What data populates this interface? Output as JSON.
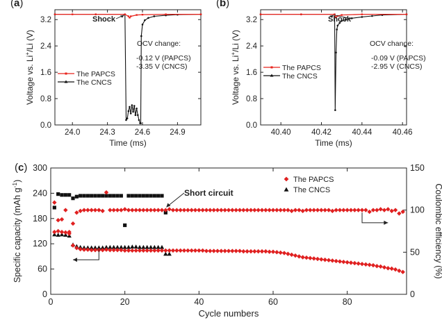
{
  "chart_data": [
    {
      "panel": "a",
      "type": "line",
      "panel_label": "(a)",
      "xlabel": "Time (ms)",
      "ylabel": "Voltage vs. Li+/Li (V)",
      "xlim": [
        23.85,
        25.1
      ],
      "ylim": [
        0.0,
        3.5
      ],
      "xticks": [
        "24.0",
        "24.3",
        "24.6",
        "24.9"
      ],
      "yticks": [
        "0.0",
        "0.8",
        "1.6",
        "2.4",
        "3.2"
      ],
      "legend_position": "bottom-left",
      "annotations": {
        "shock": "Shock",
        "ocv_title": "OCV change:",
        "ocv_lines": [
          "-0.12 V (PAPCS)",
          "-3.35 V (CNCS)"
        ]
      },
      "series": [
        {
          "name": "The PAPCS",
          "color": "#e8231c",
          "x": [
            23.85,
            24.0,
            24.2,
            24.45,
            24.48,
            24.49,
            24.5,
            24.55,
            24.6,
            24.8,
            25.1
          ],
          "y": [
            3.36,
            3.36,
            3.36,
            3.36,
            3.3,
            3.26,
            3.3,
            3.34,
            3.35,
            3.36,
            3.36
          ]
        },
        {
          "name": "The CNCS",
          "color": "#111111",
          "x": [
            23.85,
            24.2,
            24.45,
            24.46,
            24.47,
            24.48,
            24.49,
            24.5,
            24.51,
            24.52,
            24.53,
            24.54,
            24.55,
            24.56,
            24.57,
            24.58,
            24.585,
            24.59,
            24.6,
            24.62,
            24.65,
            24.7,
            24.8,
            24.9,
            25.1
          ],
          "y": [
            3.36,
            3.36,
            3.36,
            0.15,
            0.2,
            0.42,
            0.55,
            0.35,
            0.6,
            0.4,
            0.58,
            0.3,
            0.5,
            0.3,
            0.15,
            0.05,
            0.05,
            2.7,
            3.05,
            3.18,
            3.25,
            3.3,
            3.33,
            3.35,
            3.36
          ]
        }
      ]
    },
    {
      "panel": "b",
      "type": "line",
      "panel_label": "(b)",
      "xlabel": "Time (ms)",
      "ylabel": "Voltage vs. Li+/Li (V)",
      "xlim": [
        40.39,
        40.462
      ],
      "ylim": [
        0.0,
        3.5
      ],
      "xticks": [
        "40.40",
        "40.42",
        "40.44",
        "40.46"
      ],
      "yticks": [
        "0.0",
        "0.8",
        "1.6",
        "2.4",
        "3.2"
      ],
      "legend_position": "bottom-left",
      "annotations": {
        "shock": "Shock",
        "ocv_title": "OCV change:",
        "ocv_lines": [
          "-0.09 V (PAPCS)",
          "-2.95 V (CNCS)"
        ]
      },
      "series": [
        {
          "name": "The PAPCS",
          "color": "#e8231c",
          "x": [
            40.39,
            40.41,
            40.4265,
            40.4268,
            40.4272,
            40.428,
            40.43,
            40.44,
            40.462
          ],
          "y": [
            3.36,
            3.36,
            3.36,
            3.28,
            3.27,
            3.31,
            3.34,
            3.36,
            3.36
          ]
        },
        {
          "name": "The CNCS",
          "color": "#111111",
          "x": [
            40.39,
            40.41,
            40.4265,
            40.4268,
            40.4272,
            40.4276,
            40.428,
            40.429,
            40.43,
            40.432,
            40.435,
            40.44,
            40.445,
            40.45,
            40.462
          ],
          "y": [
            3.36,
            3.36,
            3.36,
            0.45,
            2.2,
            2.9,
            3.02,
            3.1,
            3.16,
            3.2,
            3.24,
            3.28,
            3.31,
            3.34,
            3.36
          ]
        }
      ]
    },
    {
      "panel": "c",
      "type": "scatter",
      "panel_label": "(c)",
      "xlabel": "Cycle numbers",
      "ylabel": "Specific capacity (mAh g-1)",
      "y2label": "Coulombic efficiency (%)",
      "xlim": [
        0,
        96
      ],
      "ylim": [
        0,
        300
      ],
      "y2lim": [
        0,
        150
      ],
      "xticks": [
        "0",
        "20",
        "40",
        "60",
        "80"
      ],
      "yticks": [
        "0",
        "60",
        "120",
        "180",
        "240",
        "300"
      ],
      "y2ticks": [
        "0",
        "50",
        "100",
        "150"
      ],
      "legend_position": "top-right",
      "annotations": {
        "short_circuit": "Short circuit"
      },
      "series": [
        {
          "name": "The PAPCS",
          "marker": "diamond",
          "color": "#e02020",
          "capacity": {
            "x": [
              1,
              2,
              3,
              4,
              5,
              6,
              7,
              8,
              9,
              10,
              11,
              12,
              13,
              14,
              15,
              16,
              17,
              18,
              19,
              20,
              21,
              22,
              23,
              24,
              25,
              26,
              27,
              28,
              29,
              30,
              31,
              32,
              33,
              34,
              35,
              36,
              37,
              38,
              39,
              40,
              41,
              42,
              43,
              44,
              45,
              46,
              47,
              48,
              49,
              50,
              51,
              52,
              53,
              54,
              55,
              56,
              57,
              58,
              59,
              60,
              61,
              62,
              63,
              64,
              65,
              66,
              67,
              68,
              69,
              70,
              71,
              72,
              73,
              74,
              75,
              76,
              77,
              78,
              79,
              80,
              81,
              82,
              83,
              84,
              85,
              86,
              87,
              88,
              89,
              90,
              91,
              92,
              93,
              94,
              95
            ],
            "y": [
              148,
              150,
              148,
              147,
              148,
              116,
              110,
              107,
              106,
              106,
              105,
              105,
              105,
              105,
              106,
              105,
              105,
              105,
              105,
              104,
              104,
              104,
              104,
              104,
              104,
              104,
              104,
              104,
              104,
              104,
              104,
              104,
              104,
              104,
              104,
              104,
              104,
              104,
              104,
              104,
              104,
              103,
              103,
              103,
              103,
              103,
              103,
              103,
              103,
              103,
              103,
              102,
              102,
              102,
              102,
              102,
              102,
              102,
              101,
              101,
              100,
              99,
              98,
              96,
              94,
              92,
              90,
              88,
              87,
              86,
              85,
              84,
              83,
              82,
              81,
              80,
              79,
              78,
              77,
              76,
              75,
              74,
              73,
              72,
              71,
              70,
              69,
              67,
              66,
              64,
              62,
              61,
              59,
              56,
              53
            ]
          },
          "efficiency": {
            "x": [
              1,
              2,
              3,
              4,
              5,
              6,
              7,
              8,
              9,
              10,
              11,
              12,
              13,
              14,
              15,
              16,
              17,
              18,
              19,
              20,
              21,
              22,
              23,
              24,
              25,
              26,
              27,
              28,
              29,
              30,
              31,
              32,
              33,
              34,
              35,
              36,
              37,
              38,
              39,
              40,
              41,
              42,
              43,
              44,
              45,
              46,
              47,
              48,
              49,
              50,
              51,
              52,
              53,
              54,
              55,
              56,
              57,
              58,
              59,
              60,
              61,
              62,
              63,
              64,
              65,
              66,
              67,
              68,
              69,
              70,
              71,
              72,
              73,
              74,
              75,
              76,
              77,
              78,
              79,
              80,
              81,
              82,
              83,
              84,
              85,
              86,
              87,
              88,
              89,
              90,
              91,
              92,
              93,
              94,
              95
            ],
            "y": [
              109,
              88,
              89,
              100,
              72,
              84,
              97,
              99,
              100,
              100,
              100,
              100,
              100,
              99,
              121,
              100,
              100,
              100,
              100,
              101,
              100,
              100,
              100,
              100,
              100,
              100,
              100,
              100,
              100,
              100,
              100,
              101,
              100,
              100,
              100,
              100,
              100,
              100,
              100,
              100,
              100,
              100,
              100,
              100,
              100,
              100,
              100,
              100,
              100,
              100,
              100,
              100,
              100,
              100,
              100,
              100,
              100,
              100,
              100,
              100,
              100,
              100,
              100,
              100,
              99,
              100,
              100,
              99,
              100,
              100,
              100,
              100,
              100,
              100,
              100,
              99,
              100,
              100,
              100,
              100,
              100,
              100,
              100,
              100,
              100,
              98,
              100,
              100,
              101,
              100,
              101,
              99,
              100,
              96,
              98
            ]
          }
        },
        {
          "name": "The CNCS",
          "marker": "triangle",
          "color": "#111111",
          "capacity": {
            "x": [
              1,
              2,
              3,
              4,
              5,
              6,
              7,
              8,
              9,
              10,
              11,
              12,
              13,
              14,
              15,
              16,
              17,
              18,
              19,
              20,
              21,
              22,
              23,
              24,
              25,
              26,
              27,
              28,
              29,
              30,
              31,
              32
            ],
            "y": [
              142,
              141,
              142,
              141,
              139,
              118,
              114,
              112,
              111,
              111,
              111,
              111,
              111,
              111,
              112,
              112,
              112,
              112,
              112,
              112,
              112,
              113,
              113,
              112,
              112,
              112,
              112,
              112,
              112,
              112,
              96,
              96
            ]
          },
          "efficiency": {
            "x": [
              1,
              2,
              3,
              4,
              5,
              6,
              7,
              8,
              9,
              10,
              11,
              12,
              13,
              14,
              15,
              16,
              17,
              18,
              19,
              20,
              21,
              22,
              23,
              24,
              25,
              26,
              27,
              28,
              29,
              30,
              31
            ],
            "y": [
              103,
              119,
              118,
              118,
              118,
              114,
              116,
              117,
              117,
              117,
              117,
              117,
              117,
              117,
              117,
              117,
              117,
              117,
              117,
              82,
              117,
              117,
              117,
              117,
              117,
              117,
              117,
              117,
              117,
              117,
              97
            ]
          }
        }
      ]
    }
  ]
}
